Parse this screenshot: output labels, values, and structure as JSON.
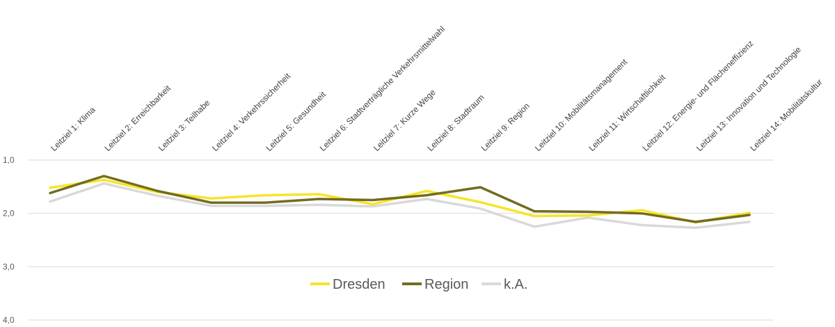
{
  "chart_data": {
    "type": "line",
    "title": "",
    "xlabel": "",
    "ylabel": "",
    "ylim": [
      1.0,
      4.0
    ],
    "y_reversed": true,
    "yticks": [
      "1,0",
      "2,0",
      "3,0",
      "4,0"
    ],
    "grid": true,
    "legend_position": "bottom-center",
    "categories": [
      "Leitziel 1: Klima",
      "Leitziel 2: Erreichbarkeit",
      "Leitziel 3: Teilhabe",
      "Leitziel 4: Verkehrssicherheit",
      "Leitziel 5: Gesundheit",
      "Leitziel 6: Stadtverträgliche Verkehrsmittelwahl",
      "Leitziel 7: Kurze Wege",
      "Leitziel 8: Stadtraum",
      "Leitziel 9: Region",
      "Leitziel 10: Mobilitätsmanagement",
      "Leitziel 11: Wirtschaftlichkeit",
      "Leitziel 12: Energie- und Flächeneffizienz",
      "Leitziel 13: Innovation und Technologie",
      "Leitziel 14: Mobilitätskultur"
    ],
    "series": [
      {
        "name": "Dresden",
        "color": "#f5e52a",
        "values": [
          1.52,
          1.37,
          1.6,
          1.72,
          1.66,
          1.64,
          1.83,
          1.58,
          1.79,
          2.05,
          2.04,
          1.94,
          2.17,
          1.99
        ]
      },
      {
        "name": "Region",
        "color": "#736c1f",
        "values": [
          1.62,
          1.3,
          1.58,
          1.8,
          1.8,
          1.73,
          1.75,
          1.66,
          1.51,
          1.96,
          1.97,
          2.0,
          2.16,
          2.03
        ]
      },
      {
        "name": "k.A.",
        "color": "#d9d9d9",
        "values": [
          1.78,
          1.44,
          1.67,
          1.86,
          1.86,
          1.84,
          1.87,
          1.73,
          1.91,
          2.25,
          2.08,
          2.22,
          2.27,
          2.16
        ]
      }
    ]
  }
}
